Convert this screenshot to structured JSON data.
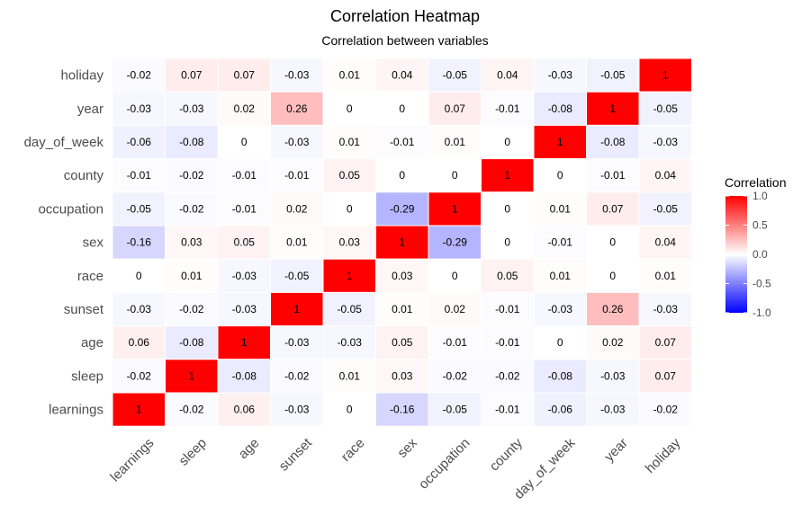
{
  "chart_data": {
    "type": "heatmap",
    "title": "Correlation Heatmap",
    "subtitle": "Correlation between variables",
    "x_categories": [
      "learnings",
      "sleep",
      "age",
      "sunset",
      "race",
      "sex",
      "occupation",
      "county",
      "day_of_week",
      "year",
      "holiday"
    ],
    "y_categories": [
      "holiday",
      "year",
      "day_of_week",
      "county",
      "occupation",
      "sex",
      "race",
      "sunset",
      "age",
      "sleep",
      "learnings"
    ],
    "values": [
      [
        -0.02,
        0.07,
        0.07,
        -0.03,
        0.01,
        0.04,
        -0.05,
        0.04,
        -0.03,
        -0.05,
        1
      ],
      [
        -0.03,
        -0.03,
        0.02,
        0.26,
        0,
        0,
        0.07,
        -0.01,
        -0.08,
        1,
        -0.05
      ],
      [
        -0.06,
        -0.08,
        0,
        -0.03,
        0.01,
        -0.01,
        0.01,
        0,
        1,
        -0.08,
        -0.03
      ],
      [
        -0.01,
        -0.02,
        -0.01,
        -0.01,
        0.05,
        0,
        0,
        1,
        0,
        -0.01,
        0.04
      ],
      [
        -0.05,
        -0.02,
        -0.01,
        0.02,
        0,
        -0.29,
        1,
        0,
        0.01,
        0.07,
        -0.05
      ],
      [
        -0.16,
        0.03,
        0.05,
        0.01,
        0.03,
        1,
        -0.29,
        0,
        -0.01,
        0,
        0.04
      ],
      [
        0,
        0.01,
        -0.03,
        -0.05,
        1,
        0.03,
        0,
        0.05,
        0.01,
        0,
        0.01
      ],
      [
        -0.03,
        -0.02,
        -0.03,
        1,
        -0.05,
        0.01,
        0.02,
        -0.01,
        -0.03,
        0.26,
        -0.03
      ],
      [
        0.06,
        -0.08,
        1,
        -0.03,
        -0.03,
        0.05,
        -0.01,
        -0.01,
        0,
        0.02,
        0.07
      ],
      [
        -0.02,
        1,
        -0.08,
        -0.02,
        0.01,
        0.03,
        -0.02,
        -0.02,
        -0.08,
        -0.03,
        0.07
      ],
      [
        1,
        -0.02,
        0.06,
        -0.03,
        0,
        -0.16,
        -0.05,
        -0.01,
        -0.06,
        -0.03,
        -0.02
      ]
    ],
    "legend": {
      "title": "Correlation",
      "ticks": [
        1.0,
        0.5,
        0.0,
        -0.5,
        -1.0
      ],
      "tick_labels": [
        "1.0",
        "0.5",
        "0.0",
        "-0.5",
        "-1.0"
      ],
      "range": [
        -1,
        1
      ],
      "placement": "right"
    },
    "colors": {
      "low": "#0000ff",
      "mid": "#ffffff",
      "high": "#ff0000"
    }
  }
}
